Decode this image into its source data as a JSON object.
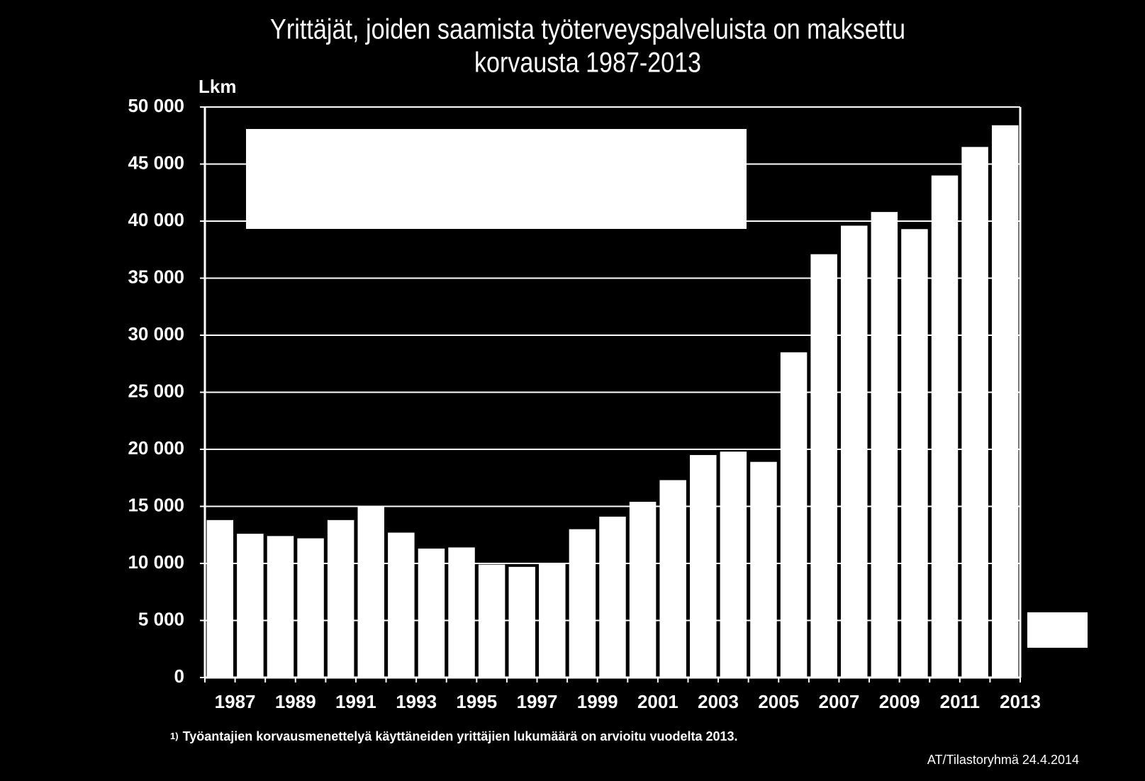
{
  "chart_data": {
    "type": "bar",
    "title": [
      "Yrittäjät, joiden saamista työterveyspalveluista on maksettu",
      "korvausta 1987-2013"
    ],
    "y_label": "Lkm",
    "categories": [
      "1987",
      null,
      "1989",
      null,
      "1991",
      null,
      "1993",
      null,
      "1995",
      null,
      "1997",
      null,
      "1999",
      null,
      "2001",
      null,
      "2003",
      null,
      "2005",
      null,
      "2007",
      null,
      "2009",
      null,
      "2011",
      null,
      "2013"
    ],
    "values": [
      13800,
      12600,
      12400,
      12200,
      13800,
      15000,
      12700,
      11300,
      11400,
      9900,
      9700,
      10000,
      13000,
      14100,
      15400,
      17300,
      19500,
      19800,
      18900,
      28500,
      37100,
      39600,
      40800,
      39300,
      44000,
      46500,
      48400
    ],
    "color": "#ffffff",
    "ylim": [
      0,
      50000
    ],
    "yticks": [
      0,
      {
        "value": 5000,
        "label": "5 000"
      },
      {
        "value": 10000,
        "label": "10 000"
      },
      {
        "value": 15000,
        "label": "15 000"
      },
      {
        "value": 20000,
        "label": "20 000"
      },
      {
        "value": 25000,
        "label": "25 000"
      },
      {
        "value": 30000,
        "label": "30 000"
      },
      {
        "value": 35000,
        "label": "35 000"
      },
      {
        "value": 40000,
        "label": "40 000"
      },
      {
        "value": 45000,
        "label": "45 000"
      },
      {
        "value": 50000,
        "label": "50 000"
      }
    ],
    "grid": true,
    "footnote": {
      "marker": "1)",
      "text": "Työantajien korvausmenettelyä käyttäneiden yrittäjien lukumäärä on arvioitu vuodelta 2013."
    },
    "source": "AT/Tilastoryhmä 24.4.2014"
  }
}
